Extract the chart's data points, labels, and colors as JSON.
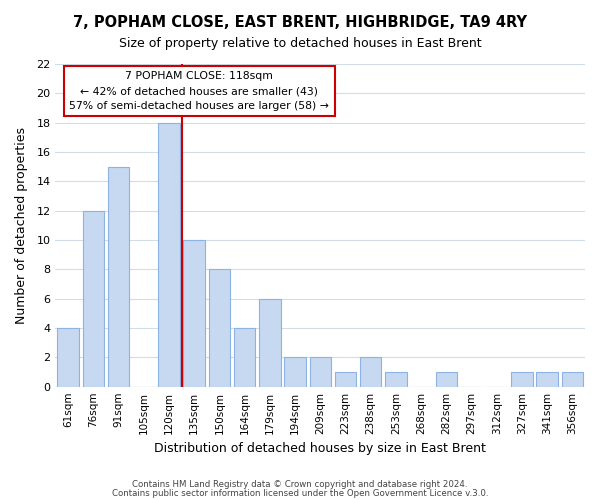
{
  "title": "7, POPHAM CLOSE, EAST BRENT, HIGHBRIDGE, TA9 4RY",
  "subtitle": "Size of property relative to detached houses in East Brent",
  "xlabel": "Distribution of detached houses by size in East Brent",
  "ylabel": "Number of detached properties",
  "bar_labels": [
    "61sqm",
    "76sqm",
    "91sqm",
    "105sqm",
    "120sqm",
    "135sqm",
    "150sqm",
    "164sqm",
    "179sqm",
    "194sqm",
    "209sqm",
    "223sqm",
    "238sqm",
    "253sqm",
    "268sqm",
    "282sqm",
    "297sqm",
    "312sqm",
    "327sqm",
    "341sqm",
    "356sqm"
  ],
  "bar_values": [
    4,
    12,
    15,
    0,
    18,
    10,
    8,
    4,
    6,
    2,
    2,
    1,
    2,
    1,
    0,
    1,
    0,
    0,
    1,
    1,
    1
  ],
  "bar_color": "#c6d9f1",
  "bar_edge_color": "#8db3e2",
  "vline_x": 4.0,
  "vline_color": "#cc0000",
  "annotation_title": "7 POPHAM CLOSE: 118sqm",
  "annotation_line1": "← 42% of detached houses are smaller (43)",
  "annotation_line2": "57% of semi-detached houses are larger (58) →",
  "annotation_box_color": "#ffffff",
  "annotation_box_edge": "#cc0000",
  "ylim": [
    0,
    22
  ],
  "yticks": [
    0,
    2,
    4,
    6,
    8,
    10,
    12,
    14,
    16,
    18,
    20,
    22
  ],
  "footnote1": "Contains HM Land Registry data © Crown copyright and database right 2024.",
  "footnote2": "Contains public sector information licensed under the Open Government Licence v.3.0.",
  "background_color": "#ffffff",
  "grid_color": "#d0dce8"
}
